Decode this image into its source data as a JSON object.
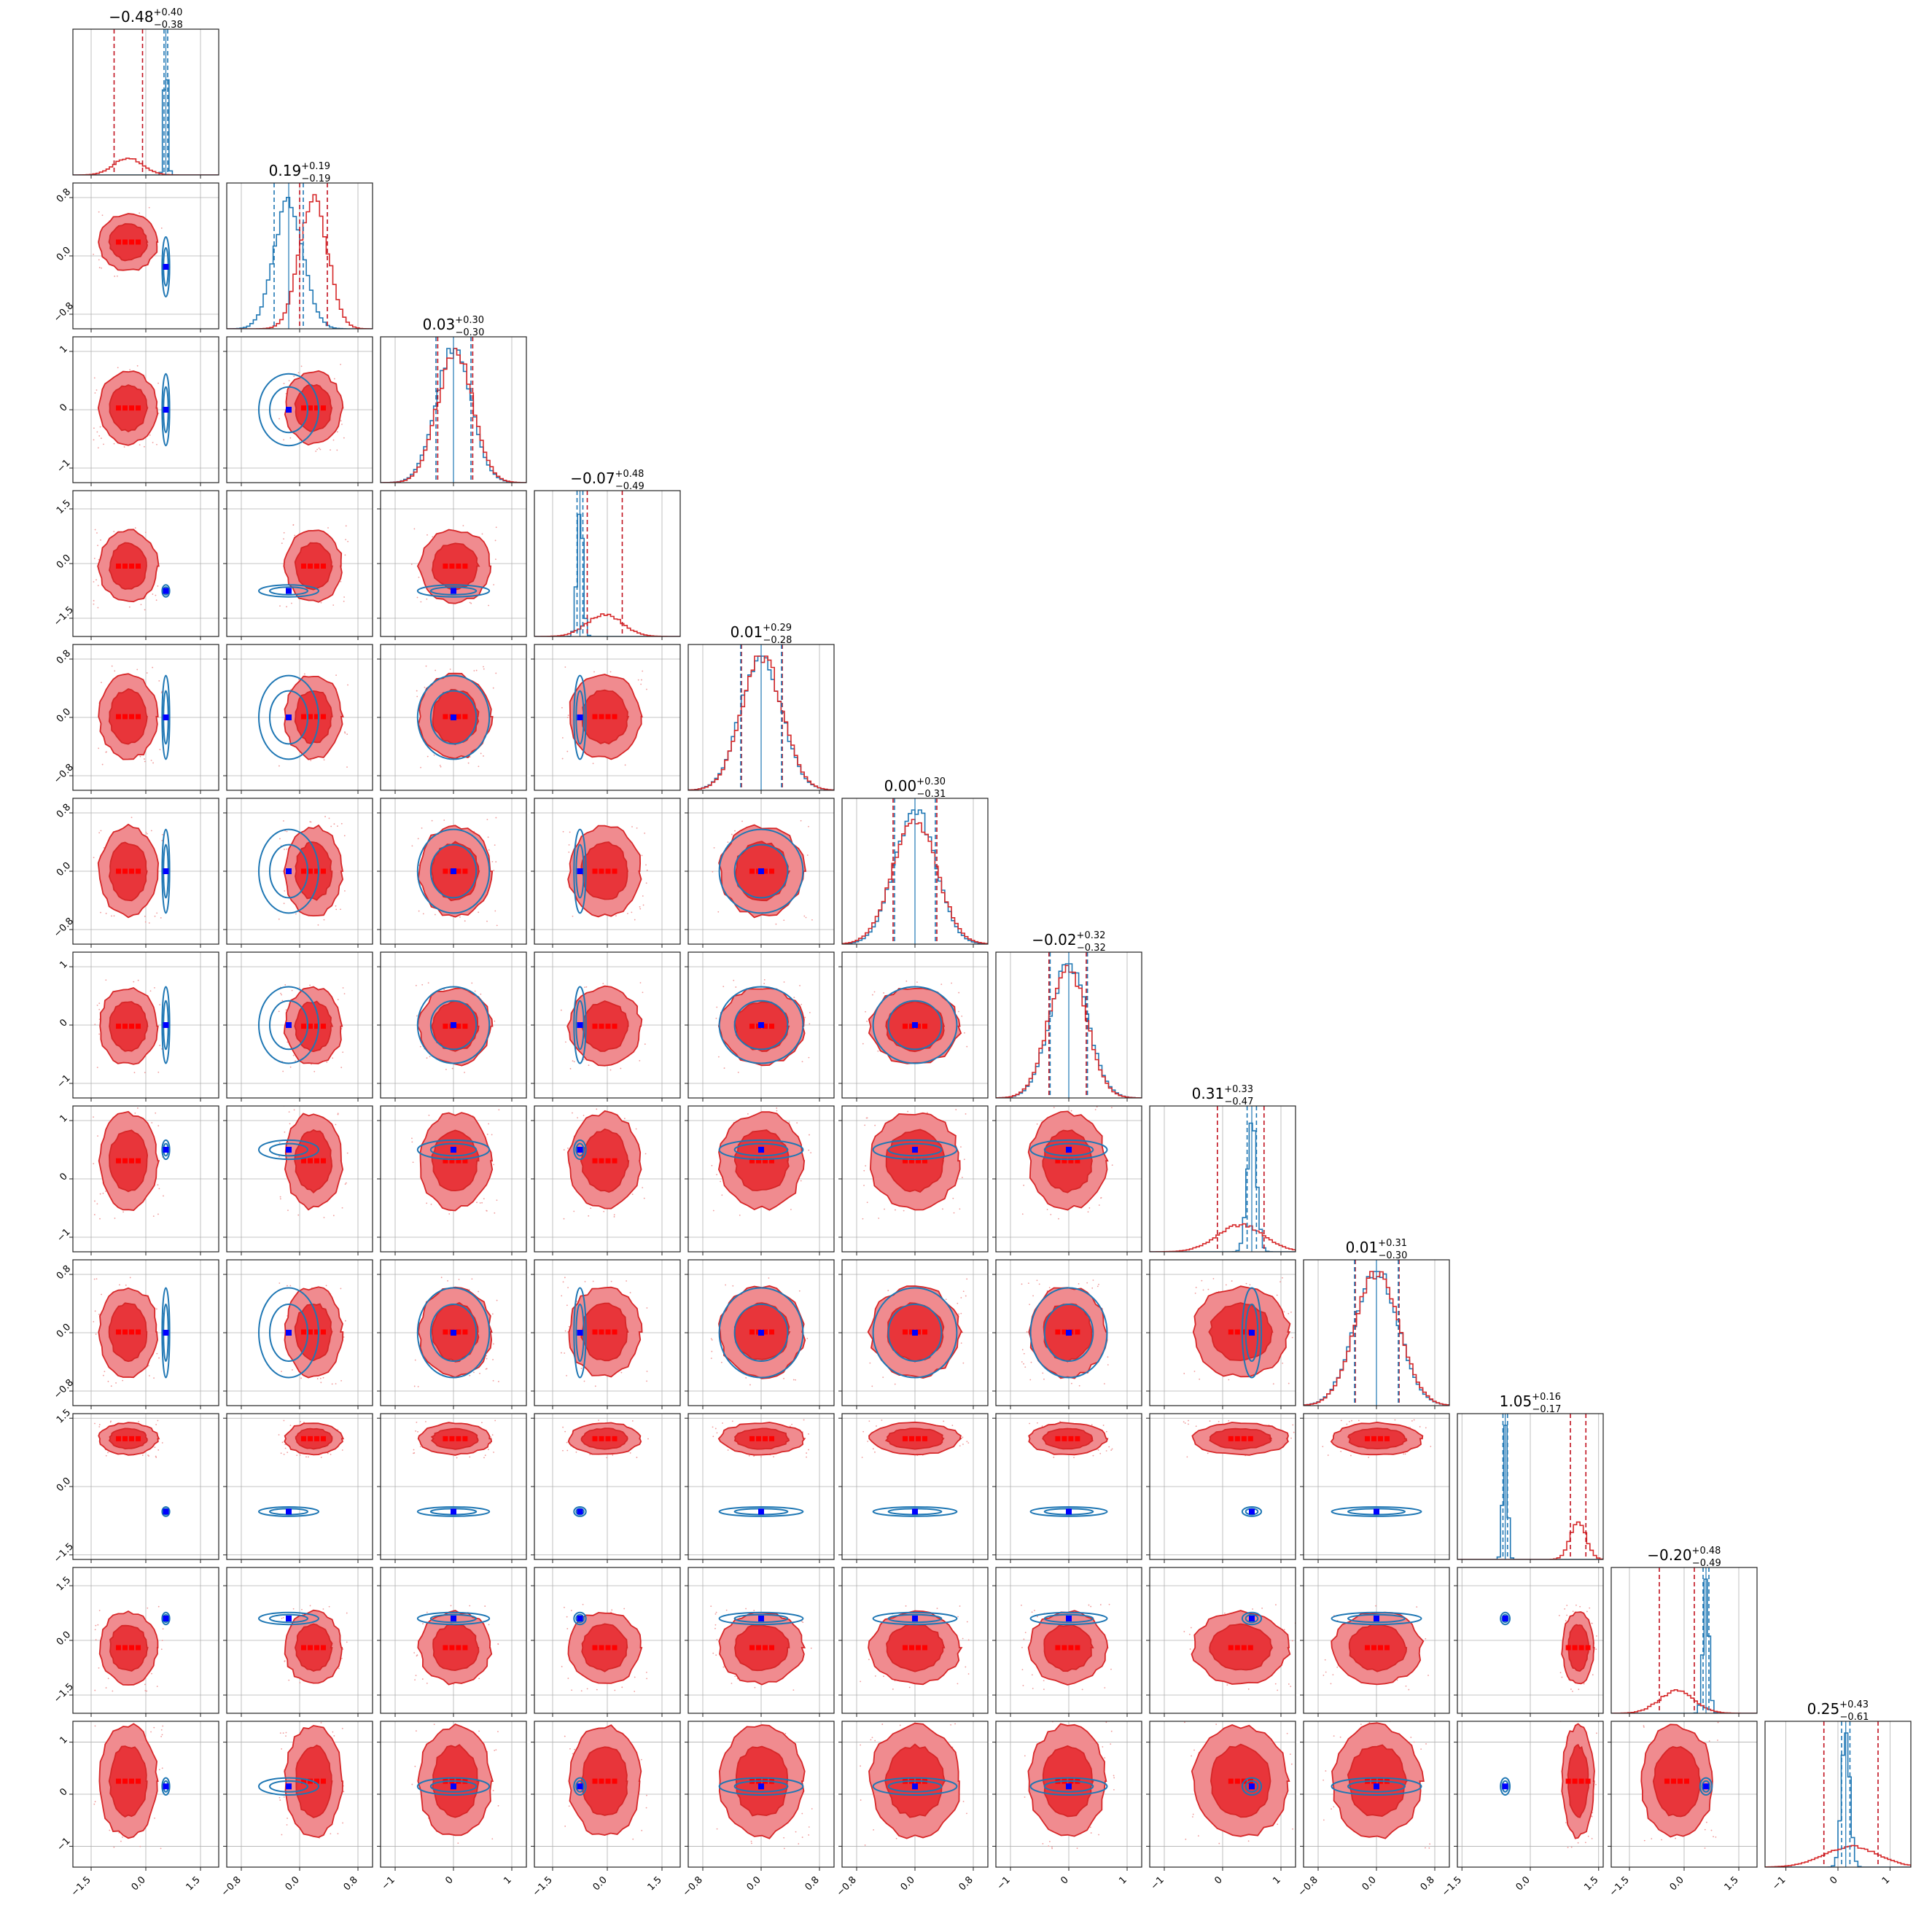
{
  "chart_data": {
    "type": "corner",
    "n_params": 12,
    "grid": true,
    "colors": {
      "red": "#d62728",
      "red_light": "#f08b8f",
      "red_mid": "#e8353a",
      "blue": "#1f77b4",
      "blue_marker": "#0000ff",
      "red_marker": "#ff0000",
      "dash_red": "#c1121f",
      "dash_blue": "#1f77b4"
    },
    "titles": [
      {
        "median": "−0.48",
        "plus": "+0.40",
        "minus": "−0.38"
      },
      {
        "median": "0.19",
        "plus": "+0.19",
        "minus": "−0.19"
      },
      {
        "median": "0.03",
        "plus": "+0.30",
        "minus": "−0.30"
      },
      {
        "median": "−0.07",
        "plus": "+0.48",
        "minus": "−0.49"
      },
      {
        "median": "0.01",
        "plus": "+0.29",
        "minus": "−0.28"
      },
      {
        "median": "0.00",
        "plus": "+0.30",
        "minus": "−0.31"
      },
      {
        "median": "−0.02",
        "plus": "+0.32",
        "minus": "−0.32"
      },
      {
        "median": "0.31",
        "plus": "+0.33",
        "minus": "−0.47"
      },
      {
        "median": "0.01",
        "plus": "+0.31",
        "minus": "−0.30"
      },
      {
        "median": "1.05",
        "plus": "+0.16",
        "minus": "−0.17"
      },
      {
        "median": "−0.20",
        "plus": "+0.48",
        "minus": "−0.49"
      },
      {
        "median": "0.25",
        "plus": "+0.43",
        "minus": "−0.61"
      }
    ],
    "params": [
      {
        "range": [
          -2.0,
          2.0
        ],
        "ticks": [
          -1.5,
          0.0,
          1.5
        ],
        "tick_labels": [
          "−1.5",
          "0.0",
          "1.5"
        ],
        "red": {
          "mean": -0.48,
          "sd": 0.39
        },
        "blue": {
          "mean": 0.55,
          "sd": 0.05
        },
        "truth": 0.55
      },
      {
        "range": [
          -1.0,
          1.0
        ],
        "ticks": [
          -0.8,
          0.0,
          0.8
        ],
        "tick_labels": [
          "−0.8",
          "0.0",
          "0.8"
        ],
        "red": {
          "mean": 0.19,
          "sd": 0.19
        },
        "blue": {
          "mean": -0.15,
          "sd": 0.2
        },
        "truth": -0.15
      },
      {
        "range": [
          -1.25,
          1.25
        ],
        "ticks": [
          -1,
          0,
          1
        ],
        "tick_labels": [
          "−1",
          "0",
          "1"
        ],
        "red": {
          "mean": 0.03,
          "sd": 0.3
        },
        "blue": {
          "mean": 0.0,
          "sd": 0.3
        },
        "truth": 0.0
      },
      {
        "range": [
          -2.0,
          2.0
        ],
        "ticks": [
          -1.5,
          0.0,
          1.5
        ],
        "tick_labels": [
          "−1.5",
          "0.0",
          "1.5"
        ],
        "red": {
          "mean": -0.07,
          "sd": 0.48
        },
        "blue": {
          "mean": -0.75,
          "sd": 0.08
        },
        "truth": -0.75
      },
      {
        "range": [
          -1.0,
          1.0
        ],
        "ticks": [
          -0.8,
          0.0,
          0.8
        ],
        "tick_labels": [
          "−0.8",
          "0.0",
          "0.8"
        ],
        "red": {
          "mean": 0.01,
          "sd": 0.28
        },
        "blue": {
          "mean": 0.0,
          "sd": 0.28
        },
        "truth": 0.0
      },
      {
        "range": [
          -1.0,
          1.0
        ],
        "ticks": [
          -0.8,
          0.0,
          0.8
        ],
        "tick_labels": [
          "−0.8",
          "0.0",
          "0.8"
        ],
        "red": {
          "mean": 0.0,
          "sd": 0.3
        },
        "blue": {
          "mean": 0.0,
          "sd": 0.28
        },
        "truth": 0.0
      },
      {
        "range": [
          -1.25,
          1.25
        ],
        "ticks": [
          -1,
          0,
          1
        ],
        "tick_labels": [
          "−1",
          "0",
          "1"
        ],
        "red": {
          "mean": -0.02,
          "sd": 0.32
        },
        "blue": {
          "mean": 0.0,
          "sd": 0.32
        },
        "truth": 0.0
      },
      {
        "range": [
          -1.25,
          1.25
        ],
        "ticks": [
          -1,
          0,
          1
        ],
        "tick_labels": [
          "−1",
          "0",
          "1"
        ],
        "red": {
          "mean": 0.31,
          "sd": 0.4
        },
        "blue": {
          "mean": 0.5,
          "sd": 0.08
        },
        "truth": 0.5
      },
      {
        "range": [
          -1.0,
          1.0
        ],
        "ticks": [
          -0.8,
          0.0,
          0.8
        ],
        "tick_labels": [
          "−0.8",
          "0.0",
          "0.8"
        ],
        "red": {
          "mean": 0.01,
          "sd": 0.3
        },
        "blue": {
          "mean": 0.0,
          "sd": 0.3
        },
        "truth": 0.0
      },
      {
        "range": [
          -1.6,
          1.6
        ],
        "ticks": [
          -1.5,
          0.0,
          1.5
        ],
        "tick_labels": [
          "−1.5",
          "0.0",
          "1.5"
        ],
        "red": {
          "mean": 1.05,
          "sd": 0.17
        },
        "blue": {
          "mean": -0.55,
          "sd": 0.05
        },
        "truth": -0.55
      },
      {
        "range": [
          -2.0,
          2.0
        ],
        "ticks": [
          -1.5,
          0.0,
          1.5
        ],
        "tick_labels": [
          "−1.5",
          "0.0",
          "1.5"
        ],
        "red": {
          "mean": -0.2,
          "sd": 0.48
        },
        "blue": {
          "mean": 0.6,
          "sd": 0.08
        },
        "truth": 0.6
      },
      {
        "range": [
          -1.4,
          1.4
        ],
        "ticks": [
          -1,
          0,
          1
        ],
        "tick_labels": [
          "−1",
          "0",
          "1"
        ],
        "red": {
          "mean": 0.25,
          "sd": 0.52
        },
        "blue": {
          "mean": 0.15,
          "sd": 0.08
        },
        "truth": 0.15
      }
    ]
  }
}
